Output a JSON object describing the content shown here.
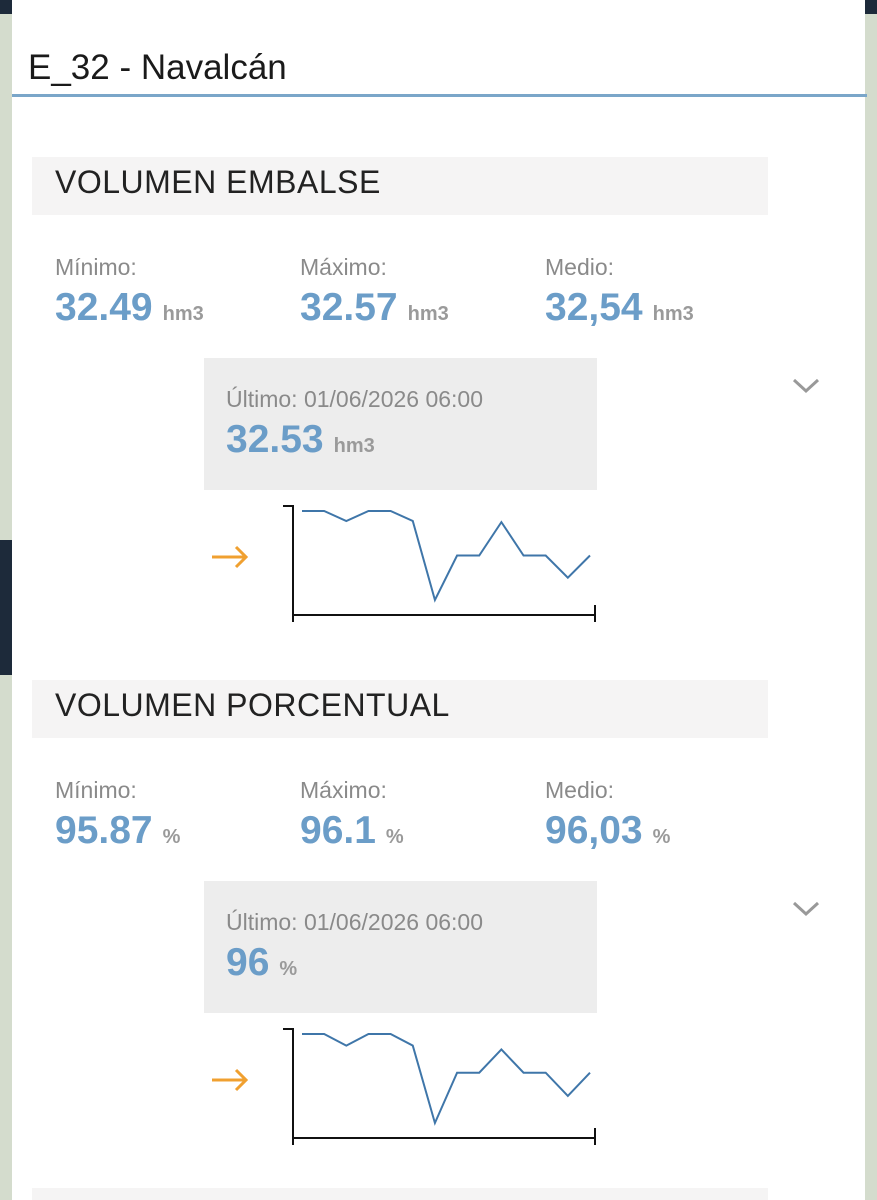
{
  "header": {
    "title": "E_32 - Navalcán"
  },
  "sections": [
    {
      "heading": "VOLUMEN EMBALSE",
      "stats": [
        {
          "label": "Mínimo:",
          "value": "32.49",
          "unit": "hm3"
        },
        {
          "label": "Máximo:",
          "value": "32.57",
          "unit": "hm3"
        },
        {
          "label": "Medio:",
          "value": "32,54",
          "unit": "hm3"
        }
      ],
      "last": {
        "label": "Último: 01/06/2026 06:00",
        "value": "32.53",
        "unit": "hm3"
      },
      "sparkline": {
        "values": [
          32.57,
          32.57,
          32.561,
          32.57,
          32.57,
          32.561,
          32.49,
          32.53,
          32.53,
          32.56,
          32.53,
          32.53,
          32.51,
          32.53
        ],
        "color": "#3f76a9"
      }
    },
    {
      "heading": "VOLUMEN PORCENTUAL",
      "stats": [
        {
          "label": "Mínimo:",
          "value": "95.87",
          "unit": "%"
        },
        {
          "label": "Máximo:",
          "value": "96.1",
          "unit": "%"
        },
        {
          "label": "Medio:",
          "value": "96,03",
          "unit": "%"
        }
      ],
      "last": {
        "label": "Último: 01/06/2026 06:00",
        "value": "96",
        "unit": "%"
      },
      "sparkline": {
        "values": [
          96.1,
          96.1,
          96.07,
          96.1,
          96.1,
          96.07,
          95.87,
          96.0,
          96.0,
          96.06,
          96.0,
          96.0,
          95.94,
          96.0
        ],
        "color": "#3f76a9"
      }
    }
  ]
}
